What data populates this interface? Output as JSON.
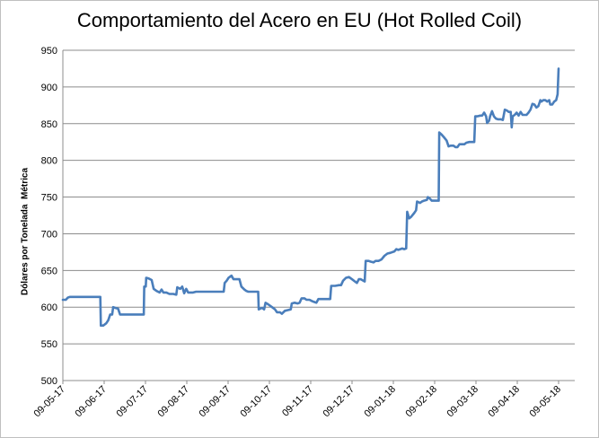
{
  "chart_data": {
    "type": "line",
    "title": "Comportamiento del Acero en EU (Hot Rolled Coil)",
    "xlabel": "",
    "ylabel": "Dólares por Tonelada  Métrica",
    "ylim": [
      500,
      950
    ],
    "y_ticks": [
      500,
      550,
      600,
      650,
      700,
      750,
      800,
      850,
      900,
      950
    ],
    "x_tick_labels": [
      "09-05-17",
      "09-06-17",
      "09-07-17",
      "09-08-17",
      "09-09-17",
      "09-10-17",
      "09-11-17",
      "09-12-17",
      "09-01-18",
      "09-02-18",
      "09-03-18",
      "09-04-18",
      "09-05-18"
    ],
    "grid": "horizontal",
    "legend": "none",
    "line_color": "#4a7ebb",
    "series": [
      {
        "points": [
          [
            0,
            610
          ],
          [
            0.3,
            610
          ],
          [
            0.5,
            613
          ],
          [
            0.7,
            614
          ],
          [
            1,
            614
          ],
          [
            1.5,
            614
          ],
          [
            2.5,
            614
          ],
          [
            3.5,
            614
          ],
          [
            3.8,
            614
          ],
          [
            3.85,
            575
          ],
          [
            4.1,
            575
          ],
          [
            4.4,
            578
          ],
          [
            4.6,
            582
          ],
          [
            4.8,
            590
          ],
          [
            5,
            590
          ],
          [
            5.1,
            600
          ],
          [
            5.3,
            599
          ],
          [
            5.6,
            598
          ],
          [
            5.8,
            590
          ],
          [
            6.5,
            590
          ],
          [
            7.5,
            590
          ],
          [
            8.2,
            590
          ],
          [
            8.25,
            628
          ],
          [
            8.4,
            628
          ],
          [
            8.45,
            640
          ],
          [
            8.7,
            639
          ],
          [
            9,
            637
          ],
          [
            9.2,
            625
          ],
          [
            9.5,
            622
          ],
          [
            9.8,
            620
          ],
          [
            10,
            624
          ],
          [
            10.2,
            620
          ],
          [
            10.5,
            620
          ],
          [
            10.8,
            618
          ],
          [
            11.2,
            618
          ],
          [
            11.5,
            617
          ],
          [
            11.6,
            627
          ],
          [
            11.9,
            625
          ],
          [
            12.1,
            628
          ],
          [
            12.3,
            619
          ],
          [
            12.5,
            625
          ],
          [
            12.7,
            620
          ],
          [
            13.2,
            620
          ],
          [
            13.5,
            621
          ],
          [
            13.7,
            621
          ],
          [
            14.5,
            621
          ],
          [
            15.5,
            621
          ],
          [
            16.3,
            621
          ],
          [
            16.4,
            633
          ],
          [
            16.6,
            636
          ],
          [
            16.8,
            640
          ],
          [
            17.1,
            643
          ],
          [
            17.3,
            638
          ],
          [
            17.7,
            638
          ],
          [
            17.9,
            638
          ],
          [
            18.1,
            628
          ],
          [
            18.4,
            624
          ],
          [
            18.6,
            622
          ],
          [
            18.8,
            621
          ],
          [
            19.2,
            621
          ],
          [
            19.8,
            621
          ],
          [
            19.85,
            597
          ],
          [
            20.2,
            599
          ],
          [
            20.4,
            597
          ],
          [
            20.55,
            606
          ],
          [
            20.8,
            604
          ],
          [
            21.2,
            600
          ],
          [
            21.5,
            597
          ],
          [
            21.7,
            593
          ],
          [
            22,
            593
          ],
          [
            22.2,
            591
          ],
          [
            22.5,
            595
          ],
          [
            22.8,
            596
          ],
          [
            23.1,
            597
          ],
          [
            23.2,
            605
          ],
          [
            23.5,
            606
          ],
          [
            23.8,
            605
          ],
          [
            24,
            606
          ],
          [
            24.2,
            612
          ],
          [
            24.5,
            612
          ],
          [
            24.7,
            610
          ],
          [
            25,
            610
          ],
          [
            25.3,
            608
          ],
          [
            25.5,
            607
          ],
          [
            25.7,
            606
          ],
          [
            25.9,
            611
          ],
          [
            26.3,
            611
          ],
          [
            26.7,
            611
          ],
          [
            27.1,
            611
          ],
          [
            27.2,
            629
          ],
          [
            27.6,
            629
          ],
          [
            28,
            630
          ],
          [
            28.2,
            630
          ],
          [
            28.4,
            636
          ],
          [
            28.7,
            640
          ],
          [
            29,
            641
          ],
          [
            29.3,
            638
          ],
          [
            29.6,
            635
          ],
          [
            29.8,
            633
          ],
          [
            30,
            638
          ],
          [
            30.2,
            638
          ],
          [
            30.6,
            635
          ],
          [
            30.7,
            663
          ],
          [
            31,
            663
          ],
          [
            31.2,
            662
          ],
          [
            31.5,
            661
          ],
          [
            31.7,
            663
          ],
          [
            32,
            663
          ],
          [
            32.3,
            665
          ],
          [
            32.6,
            670
          ],
          [
            32.9,
            673
          ],
          [
            33.2,
            674
          ],
          [
            33.6,
            676
          ],
          [
            33.8,
            679
          ],
          [
            34,
            678
          ],
          [
            34.2,
            679
          ],
          [
            34.4,
            680
          ],
          [
            34.6,
            679
          ],
          [
            34.8,
            680
          ],
          [
            34.9,
            730
          ],
          [
            35.1,
            721
          ],
          [
            35.3,
            723
          ],
          [
            35.6,
            728
          ],
          [
            35.8,
            732
          ],
          [
            35.9,
            744
          ],
          [
            36.2,
            742
          ],
          [
            36.4,
            744
          ],
          [
            36.6,
            745
          ],
          [
            36.9,
            746
          ],
          [
            37,
            750
          ],
          [
            37.2,
            748
          ],
          [
            37.4,
            745
          ],
          [
            37.6,
            745
          ],
          [
            37.8,
            745
          ],
          [
            38.1,
            745
          ],
          [
            38.15,
            838
          ],
          [
            38.4,
            835
          ],
          [
            38.6,
            832
          ],
          [
            38.9,
            827
          ],
          [
            39.1,
            819
          ],
          [
            39.3,
            820
          ],
          [
            39.6,
            820
          ],
          [
            39.8,
            818
          ],
          [
            40,
            818
          ],
          [
            40.2,
            822
          ],
          [
            40.5,
            822
          ],
          [
            40.7,
            822
          ],
          [
            40.9,
            824
          ],
          [
            41.2,
            825
          ],
          [
            41.5,
            825
          ],
          [
            41.7,
            825
          ],
          [
            41.8,
            860
          ],
          [
            42,
            860
          ],
          [
            42.3,
            861
          ],
          [
            42.5,
            861
          ],
          [
            42.7,
            865
          ],
          [
            42.9,
            860
          ],
          [
            43,
            851
          ],
          [
            43.2,
            854
          ],
          [
            43.3,
            860
          ],
          [
            43.5,
            867
          ],
          [
            43.7,
            860
          ],
          [
            43.9,
            857
          ],
          [
            44.1,
            856
          ],
          [
            44.4,
            856
          ],
          [
            44.6,
            855
          ],
          [
            44.8,
            869
          ],
          [
            45,
            868
          ],
          [
            45.2,
            866
          ],
          [
            45.4,
            866
          ],
          [
            45.5,
            845
          ],
          [
            45.6,
            860
          ],
          [
            45.8,
            862
          ],
          [
            46,
            865
          ],
          [
            46.2,
            861
          ],
          [
            46.4,
            866
          ],
          [
            46.6,
            862
          ],
          [
            46.8,
            862
          ],
          [
            47,
            862
          ],
          [
            47.2,
            865
          ],
          [
            47.4,
            869
          ],
          [
            47.6,
            877
          ],
          [
            47.8,
            876
          ],
          [
            48,
            872
          ],
          [
            48.2,
            874
          ],
          [
            48.4,
            882
          ],
          [
            48.5,
            880
          ],
          [
            48.7,
            882
          ],
          [
            48.9,
            882
          ],
          [
            49.1,
            880
          ],
          [
            49.3,
            882
          ],
          [
            49.4,
            876
          ],
          [
            49.6,
            876
          ],
          [
            49.8,
            880
          ],
          [
            50,
            882
          ],
          [
            50.15,
            890
          ],
          [
            50.25,
            925
          ]
        ]
      }
    ]
  }
}
